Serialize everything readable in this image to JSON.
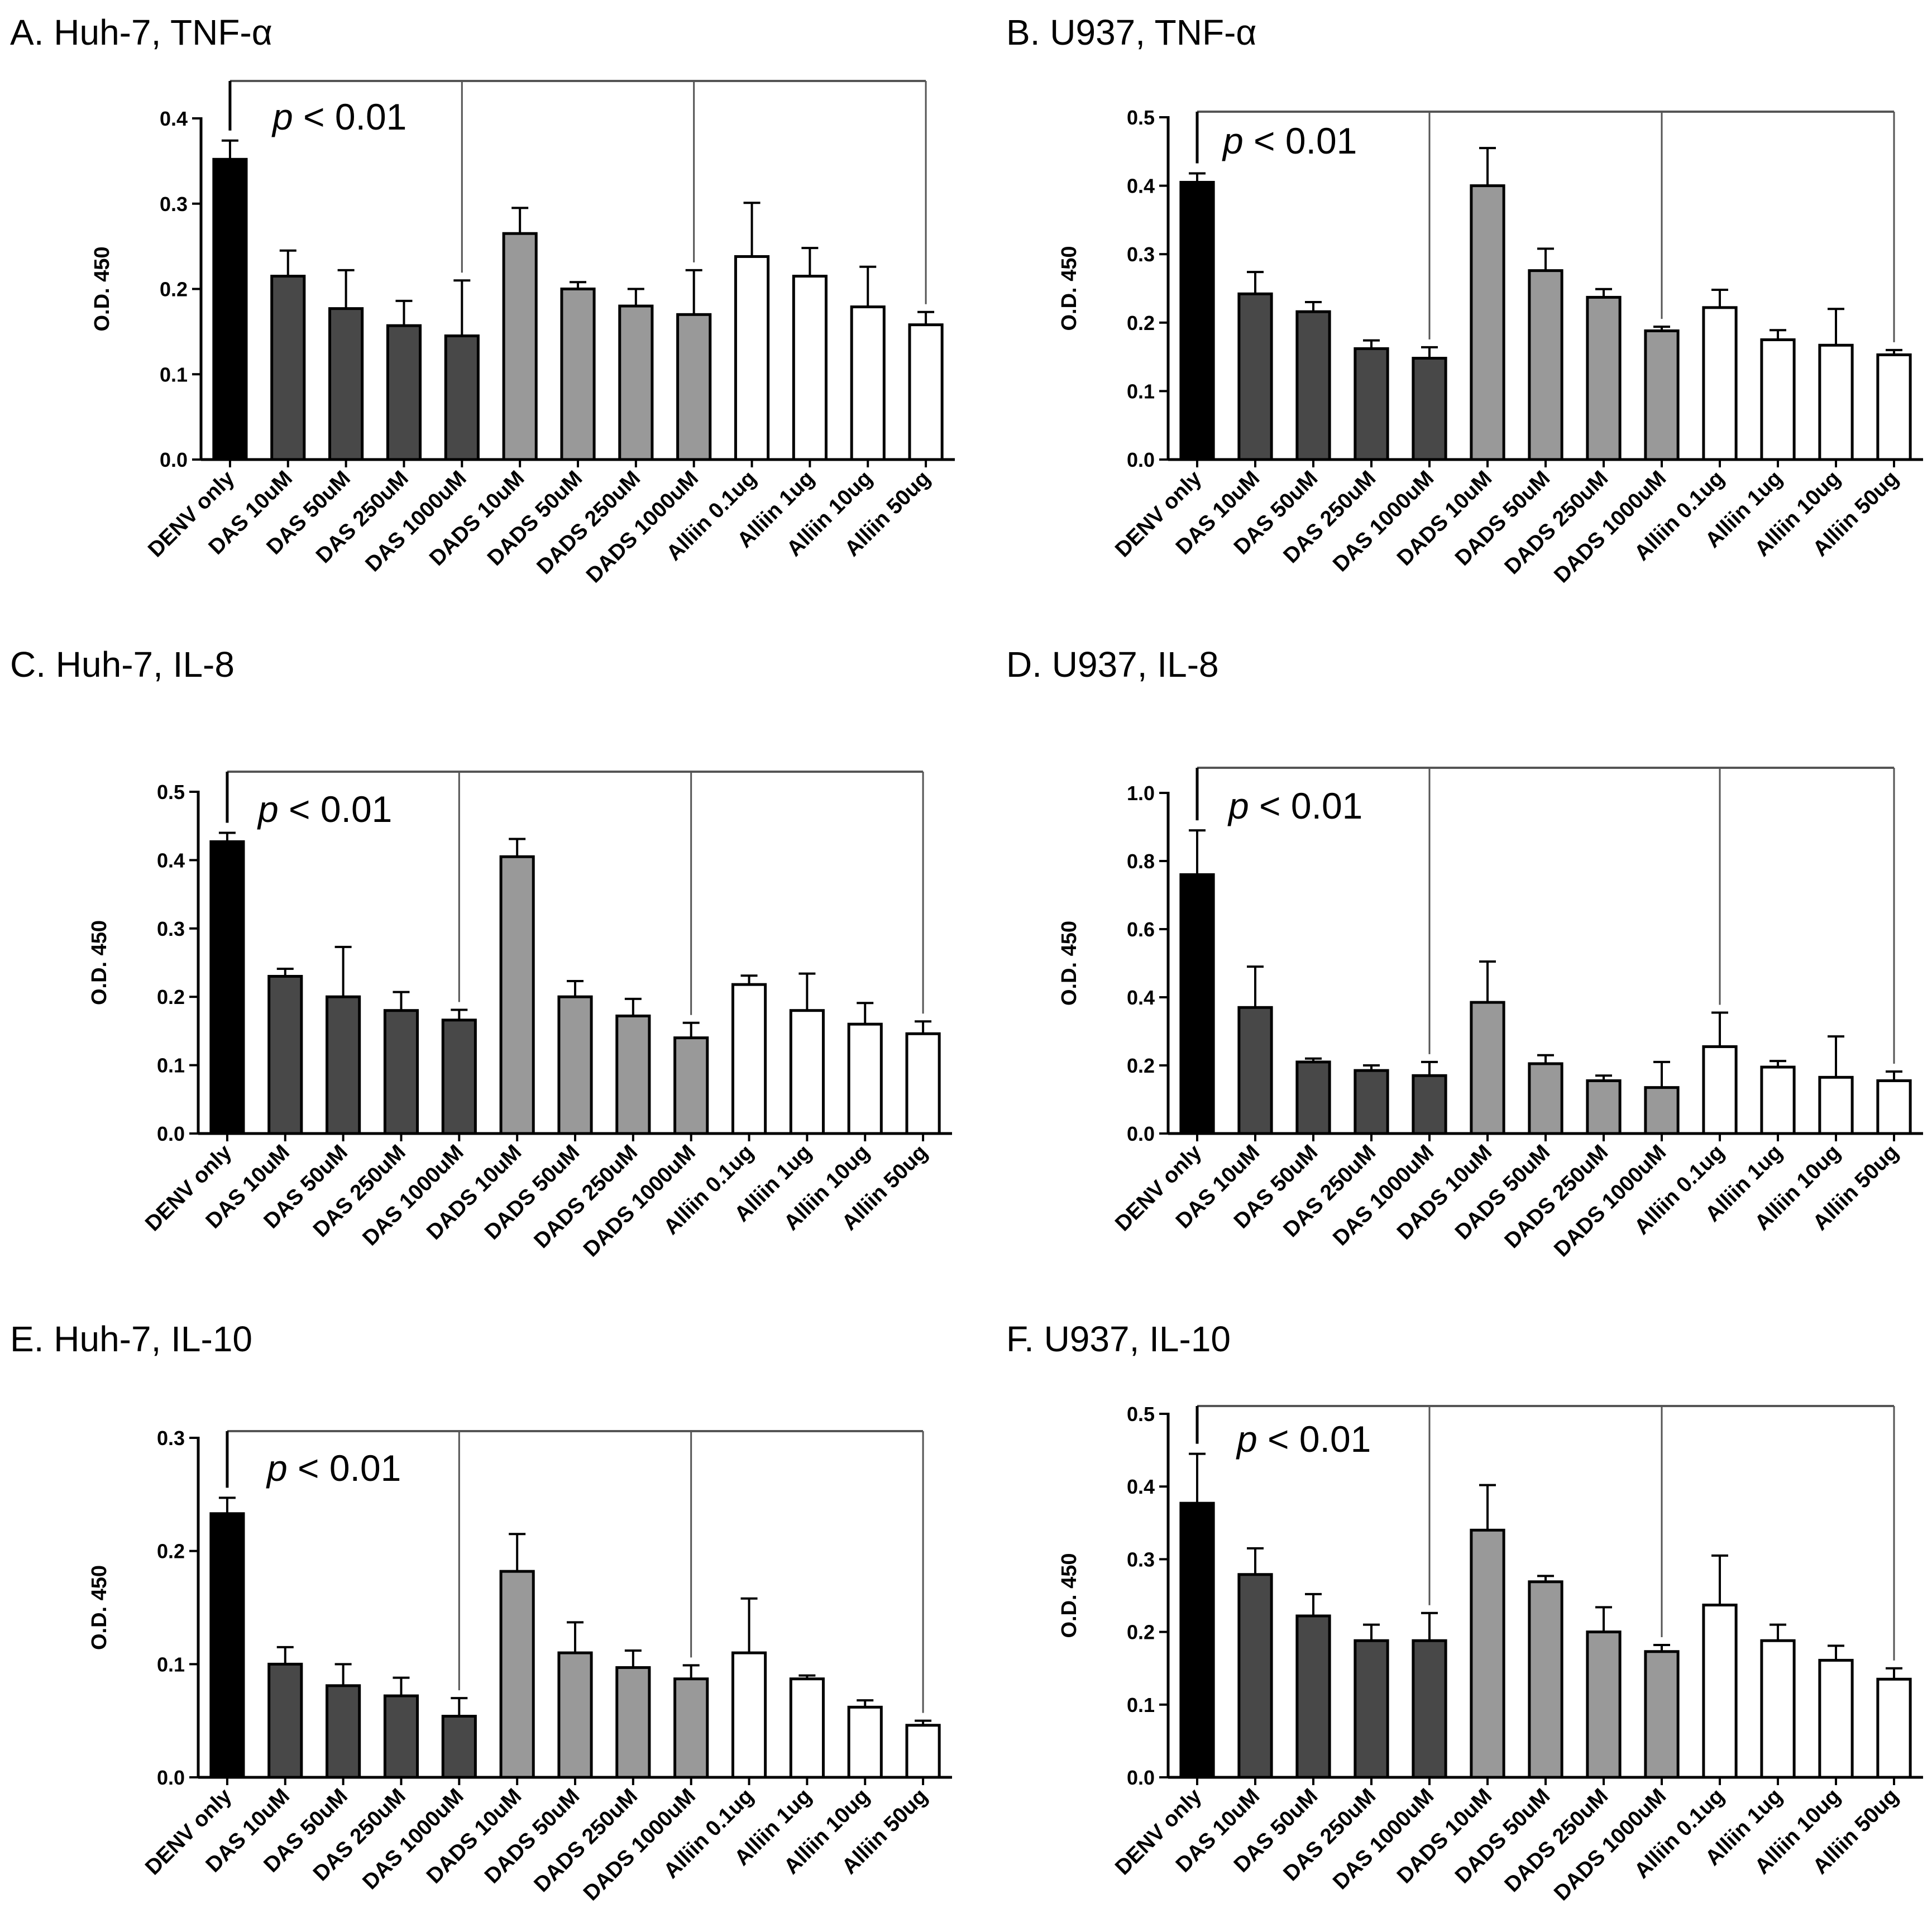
{
  "categories": [
    "DENV only",
    "DAS 10uM",
    "DAS 50uM",
    "DAS 250uM",
    "DAS 1000uM",
    "DADS 10uM",
    "DADS 50uM",
    "DADS 250uM",
    "DADS 1000uM",
    "Alliin 0.1ug",
    "Alliin 1ug",
    "Alliin 10ug",
    "Alliin 50ug"
  ],
  "colors": {
    "denv": "#000000",
    "das": "#484848",
    "dads": "#999999",
    "alliin": "#ffffff",
    "stroke": "#000000",
    "bracket": "#555555"
  },
  "chart_data": [
    {
      "type": "bar",
      "title": "A. Huh-7, TNF-α",
      "ylabel": "O.D. 450",
      "ylim": [
        0,
        0.4
      ],
      "yticks": [
        "0.0",
        "0.1",
        "0.2",
        "0.3",
        "0.4"
      ],
      "categories": [
        "DENV only",
        "DAS 10uM",
        "DAS 50uM",
        "DAS 250uM",
        "DAS 1000uM",
        "DADS 10uM",
        "DADS 50uM",
        "DADS 250uM",
        "DADS 1000uM",
        "Alliin 0.1ug",
        "Alliin 1ug",
        "Alliin 10ug",
        "Alliin 50ug"
      ],
      "values": [
        0.352,
        0.215,
        0.177,
        0.157,
        0.145,
        0.265,
        0.2,
        0.18,
        0.17,
        0.238,
        0.215,
        0.179,
        0.158
      ],
      "errors": [
        0.022,
        0.03,
        0.045,
        0.029,
        0.065,
        0.03,
        0.008,
        0.02,
        0.052,
        0.063,
        0.033,
        0.047,
        0.015
      ],
      "annotation": {
        "p_symbol": "p",
        "p_text": " < 0.01",
        "bracket_targets": [
          4,
          8,
          12
        ]
      }
    },
    {
      "type": "bar",
      "title": "B. U937, TNF-α",
      "ylabel": "O.D. 450",
      "ylim": [
        0,
        0.5
      ],
      "yticks": [
        "0.0",
        "0.1",
        "0.2",
        "0.3",
        "0.4",
        "0.5"
      ],
      "categories": [
        "DENV only",
        "DAS 10uM",
        "DAS 50uM",
        "DAS 250uM",
        "DAS 1000uM",
        "DADS 10uM",
        "DADS 50uM",
        "DADS 250uM",
        "DADS 1000uM",
        "Alliin 0.1ug",
        "Alliin 1ug",
        "Alliin 10ug",
        "Alliin 50ug"
      ],
      "values": [
        0.405,
        0.242,
        0.216,
        0.162,
        0.148,
        0.4,
        0.276,
        0.237,
        0.188,
        0.222,
        0.175,
        0.167,
        0.153
      ],
      "errors": [
        0.013,
        0.032,
        0.014,
        0.012,
        0.016,
        0.055,
        0.032,
        0.012,
        0.006,
        0.026,
        0.014,
        0.053,
        0.007
      ],
      "annotation": {
        "p_symbol": "p",
        "p_text": " < 0.01",
        "bracket_targets": [
          4,
          8,
          12
        ]
      }
    },
    {
      "type": "bar",
      "title": "C. Huh-7, IL-8",
      "ylabel": "O.D. 450",
      "ylim": [
        0,
        0.5
      ],
      "yticks": [
        "0.0",
        "0.1",
        "0.2",
        "0.3",
        "0.4",
        "0.5"
      ],
      "categories": [
        "DENV only",
        "DAS 10uM",
        "DAS 50uM",
        "DAS 250uM",
        "DAS 1000uM",
        "DADS 10uM",
        "DADS 50uM",
        "DADS 250uM",
        "DADS 1000uM",
        "Alliin 0.1ug",
        "Alliin 1ug",
        "Alliin 10ug",
        "Alliin 50ug"
      ],
      "values": [
        0.427,
        0.23,
        0.2,
        0.18,
        0.166,
        0.405,
        0.2,
        0.172,
        0.14,
        0.218,
        0.18,
        0.16,
        0.146
      ],
      "errors": [
        0.013,
        0.011,
        0.073,
        0.027,
        0.015,
        0.026,
        0.023,
        0.025,
        0.022,
        0.013,
        0.054,
        0.031,
        0.018
      ],
      "annotation": {
        "p_symbol": "p",
        "p_text": " < 0.01",
        "bracket_targets": [
          4,
          8,
          12
        ]
      }
    },
    {
      "type": "bar",
      "title": "D. U937, IL-8",
      "ylabel": "O.D. 450",
      "ylim": [
        0,
        1.0
      ],
      "yticks": [
        "0.0",
        "0.2",
        "0.4",
        "0.6",
        "0.8",
        "1.0"
      ],
      "categories": [
        "DENV only",
        "DAS 10uM",
        "DAS 50uM",
        "DAS 250uM",
        "DAS 1000uM",
        "DADS 10uM",
        "DADS 50uM",
        "DADS 250uM",
        "DADS 1000uM",
        "Alliin 0.1ug",
        "Alliin 1ug",
        "Alliin 10ug",
        "Alliin 50ug"
      ],
      "values": [
        0.76,
        0.37,
        0.21,
        0.185,
        0.17,
        0.385,
        0.205,
        0.155,
        0.135,
        0.255,
        0.195,
        0.165,
        0.155
      ],
      "errors": [
        0.13,
        0.12,
        0.01,
        0.015,
        0.04,
        0.12,
        0.025,
        0.015,
        0.075,
        0.1,
        0.018,
        0.12,
        0.027
      ],
      "annotation": {
        "p_symbol": "p",
        "p_text": " < 0.01",
        "bracket_targets": [
          4,
          9,
          12
        ]
      }
    },
    {
      "type": "bar",
      "title": "E. Huh-7, IL-10",
      "ylabel": "O.D. 450",
      "ylim": [
        0,
        0.3
      ],
      "yticks": [
        "0.0",
        "0.1",
        "0.2",
        "0.3"
      ],
      "categories": [
        "DENV only",
        "DAS 10uM",
        "DAS 50uM",
        "DAS 250uM",
        "DAS 1000uM",
        "DADS 10uM",
        "DADS 50uM",
        "DADS 250uM",
        "DADS 1000uM",
        "Alliin 0.1ug",
        "Alliin 1ug",
        "Alliin 10ug",
        "Alliin 50ug"
      ],
      "values": [
        0.233,
        0.1,
        0.081,
        0.072,
        0.054,
        0.182,
        0.11,
        0.097,
        0.087,
        0.11,
        0.087,
        0.062,
        0.046
      ],
      "errors": [
        0.014,
        0.015,
        0.019,
        0.016,
        0.016,
        0.033,
        0.027,
        0.015,
        0.012,
        0.048,
        0.003,
        0.006,
        0.004
      ],
      "annotation": {
        "p_symbol": "p",
        "p_text": " < 0.01",
        "bracket_targets": [
          4,
          8,
          12
        ]
      }
    },
    {
      "type": "bar",
      "title": "F. U937, IL-10",
      "ylabel": "O.D. 450",
      "ylim": [
        0,
        0.5
      ],
      "yticks": [
        "0.0",
        "0.1",
        "0.2",
        "0.3",
        "0.4",
        "0.5"
      ],
      "categories": [
        "DENV only",
        "DAS 10uM",
        "DAS 50uM",
        "DAS 250uM",
        "DAS 1000uM",
        "DADS 10uM",
        "DADS 50uM",
        "DADS 250uM",
        "DADS 1000uM",
        "Alliin 0.1ug",
        "Alliin 1ug",
        "Alliin 10ug",
        "Alliin 50ug"
      ],
      "values": [
        0.377,
        0.279,
        0.222,
        0.188,
        0.188,
        0.34,
        0.269,
        0.2,
        0.173,
        0.237,
        0.188,
        0.161,
        0.135
      ],
      "errors": [
        0.068,
        0.036,
        0.03,
        0.022,
        0.038,
        0.062,
        0.008,
        0.034,
        0.009,
        0.068,
        0.022,
        0.02,
        0.015
      ],
      "annotation": {
        "p_symbol": "p",
        "p_text": " < 0.01",
        "bracket_targets": [
          4,
          8,
          12
        ]
      }
    }
  ]
}
